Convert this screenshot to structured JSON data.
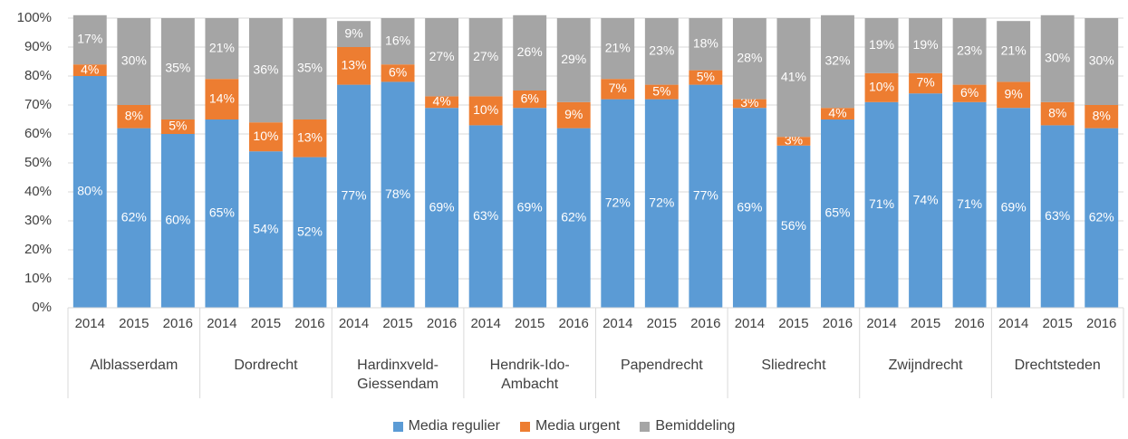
{
  "chart_data": {
    "type": "stacked_bar",
    "groups": [
      "Alblasserdam",
      "Dordrecht",
      "Hardinxveld-Giessendam",
      "Hendrik-Ido-Ambacht",
      "Papendrecht",
      "Sliedrecht",
      "Zwijndrecht",
      "Drechtsteden"
    ],
    "categories": [
      "2014",
      "2015",
      "2016",
      "2014",
      "2015",
      "2016",
      "2014",
      "2015",
      "2016",
      "2014",
      "2015",
      "2016",
      "2014",
      "2015",
      "2016",
      "2014",
      "2015",
      "2016",
      "2014",
      "2015",
      "2016",
      "2014",
      "2015",
      "2016"
    ],
    "series": [
      {
        "name": "Media regulier",
        "color": "#5b9bd5",
        "values": [
          80,
          62,
          60,
          65,
          54,
          52,
          77,
          78,
          69,
          63,
          69,
          62,
          72,
          72,
          77,
          69,
          56,
          65,
          71,
          74,
          71,
          69,
          63,
          62
        ],
        "value_labels": [
          "80%",
          "62%",
          "60%",
          "65%",
          "54%",
          "52%",
          "77%",
          "78%",
          "69%",
          "63%",
          "69%",
          "62%",
          "72%",
          "72%",
          "77%",
          "69%",
          "56%",
          "65%",
          "71%",
          "74%",
          "71%",
          "69%",
          "63%",
          "62%"
        ]
      },
      {
        "name": "Media urgent",
        "color": "#ed7d31",
        "values": [
          4,
          8,
          5,
          14,
          10,
          13,
          13,
          6,
          4,
          10,
          6,
          9,
          7,
          5,
          5,
          3,
          3,
          4,
          10,
          7,
          6,
          9,
          8,
          8
        ],
        "value_labels": [
          "4%",
          "8%",
          "5%",
          "14%",
          "10%",
          "13%",
          "13%",
          "6%",
          "4%",
          "10%",
          "6%",
          "9%",
          "7%",
          "5%",
          "5%",
          "3%",
          "3%",
          "4%",
          "10%",
          "7%",
          "6%",
          "9%",
          "8%",
          "8%"
        ]
      },
      {
        "name": "Bemiddeling",
        "color": "#a5a5a5",
        "values": [
          17,
          30,
          35,
          21,
          36,
          35,
          9,
          16,
          27,
          27,
          26,
          29,
          21,
          23,
          18,
          28,
          41,
          32,
          19,
          19,
          23,
          21,
          30,
          30
        ],
        "value_labels": [
          "17%",
          "30%",
          "35%",
          "21%",
          "36%",
          "35%",
          "9%",
          "16%",
          "27%",
          "27%",
          "26%",
          "29%",
          "21%",
          "23%",
          "18%",
          "28%",
          "41%",
          "32%",
          "19%",
          "19%",
          "23%",
          "21%",
          "30%",
          "30%"
        ]
      }
    ],
    "ylim": [
      0,
      100
    ],
    "yticks": [
      {
        "value": 0,
        "label": "0%"
      },
      {
        "value": 10,
        "label": "10%"
      },
      {
        "value": 20,
        "label": "20%"
      },
      {
        "value": 30,
        "label": "30%"
      },
      {
        "value": 40,
        "label": "40%"
      },
      {
        "value": 50,
        "label": "50%"
      },
      {
        "value": 60,
        "label": "60%"
      },
      {
        "value": 70,
        "label": "70%"
      },
      {
        "value": 80,
        "label": "80%"
      },
      {
        "value": 90,
        "label": "90%"
      },
      {
        "value": 100,
        "label": "100%"
      }
    ],
    "grid": true,
    "legend": "bottom"
  }
}
